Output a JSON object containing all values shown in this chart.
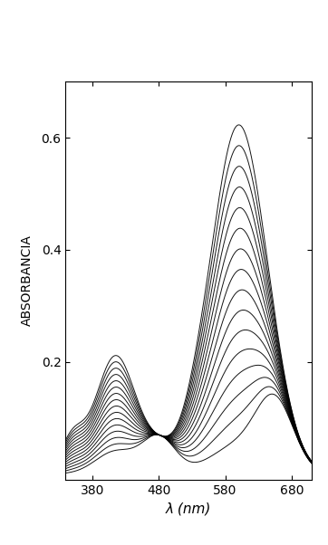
{
  "xlabel": "λ (nm)",
  "ylabel": "ABSORBANCIA",
  "xlim": [
    340,
    710
  ],
  "ylim": [
    -0.01,
    0.7
  ],
  "xticks": [
    380,
    480,
    580,
    680
  ],
  "yticks": [
    0.2,
    0.4,
    0.6
  ],
  "n_curves": 16,
  "line_color": "black",
  "line_width": 0.7,
  "background": "white",
  "figsize": [
    3.62,
    6.02
  ],
  "dpi": 100
}
